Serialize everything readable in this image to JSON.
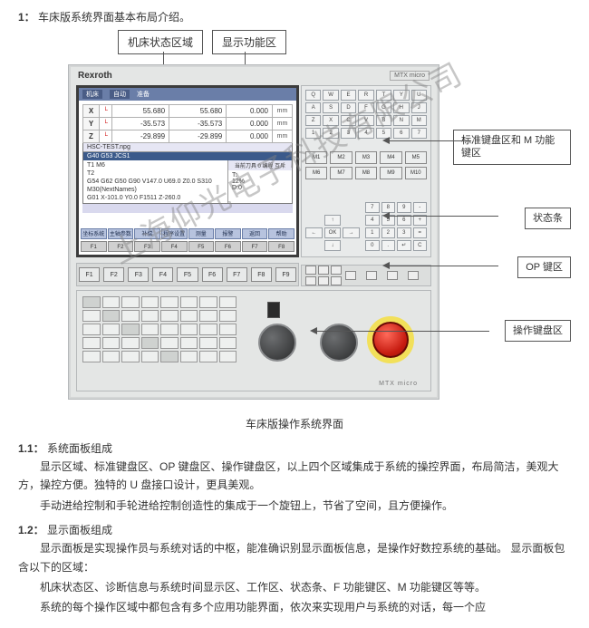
{
  "header": {
    "num": "1：",
    "title": "车床版系统界面基本布局介绍。"
  },
  "top_callouts": {
    "machine_status": "机床状态区域",
    "display_func": "显示功能区"
  },
  "side_callouts": {
    "keypad": "标准键盘区和 M 功能键区",
    "statusbar": "状态条",
    "opkeys": "OP 键区",
    "opkeyboard": "操作键盘区"
  },
  "panel": {
    "brand": "Rexroth",
    "label": "MTX micro"
  },
  "screen": {
    "status": {
      "seg1": "机床",
      "seg2": "自动",
      "seg3": "准备"
    },
    "axes": [
      {
        "axis": "X",
        "mark": "└",
        "v1": "55.680",
        "v2": "55.680",
        "v3": "0.000",
        "u": "mm"
      },
      {
        "axis": "Y",
        "mark": "└",
        "v1": "-35.573",
        "v2": "-35.573",
        "v3": "0.000",
        "u": "mm"
      },
      {
        "axis": "Z",
        "mark": "└",
        "v1": "-29.899",
        "v2": "-29.899",
        "v3": "0.000",
        "u": "mm"
      }
    ],
    "prog": {
      "header": "HSC-TEST.npg",
      "green": "G40 G53 JCS1",
      "lines": [
        "T1 M6",
        "T2",
        "G54 G62 G50 G90 V147.0 U69.0 Z0.0 S310",
        "M30(NextNames)",
        "G01 X-101.0 Y0.0 F1511 Z-260.0"
      ],
      "rhead": "当前刀具 0   编程   互斥",
      "rlines": [
        "T:",
        "12%",
        "D:0",
        "S:",
        "F:",
        "1 0"
      ]
    },
    "softkeys_top": [
      "坐标系统",
      "主轴参数",
      "补偿",
      "程序设置",
      "测量",
      "报警",
      "返回",
      "帮助"
    ],
    "softkeys_bot": [
      "F1",
      "F2",
      "F3",
      "F4",
      "F5",
      "F6",
      "F7",
      "F8"
    ]
  },
  "keypad": {
    "rows": [
      "Q",
      "W",
      "E",
      "R",
      "T",
      "Y",
      "U",
      "A",
      "S",
      "D",
      "F",
      "G",
      "H",
      "J",
      "Z",
      "X",
      "C",
      "V",
      "B",
      "N",
      "M",
      "1",
      "2",
      "3",
      "4",
      "5",
      "6",
      "7"
    ],
    "mkeys": [
      "M1",
      "M2",
      "M3",
      "M4",
      "M5",
      "M6",
      "M7",
      "M8",
      "M9",
      "M10"
    ],
    "arrows": [
      "",
      "↑",
      "",
      "←",
      "OK",
      "→",
      "",
      "↓",
      ""
    ],
    "nums": [
      "7",
      "8",
      "9",
      "-",
      "4",
      "5",
      "6",
      "+",
      "1",
      "2",
      "3",
      "=",
      "0",
      ".",
      "↵",
      "C"
    ]
  },
  "fkeys": [
    "F1",
    "F2",
    "F3",
    "F4",
    "F5",
    "F6",
    "F7",
    "F8",
    "F9"
  ],
  "op_keys_count": 40,
  "op_label": "MTX micro",
  "watermark": "上海仰光电子科技有限公司",
  "caption": "车床版操作系统界面",
  "sections": {
    "s11": {
      "num": "1.1：",
      "title": "系统面板组成"
    },
    "s11_p1": "显示区域、标准键盘区、OP 键盘区、操作键盘区，以上四个区域集成于系统的操控界面，布局简洁，美观大方，操控方便。独特的 U 盘接口设计，更具美观。",
    "s11_p2": "手动进给控制和手轮进给控制创造性的集成于一个旋钮上，节省了空间，且方便操作。",
    "s12": {
      "num": "1.2：",
      "title": "显示面板组成"
    },
    "s12_p1": "显示面板是实现操作员与系统对话的中枢，能准确识别显示面板信息，是操作好数控系统的基础。 显示面板包含以下的区域：",
    "s12_p2": "机床状态区、诊断信息与系统时间显示区、工作区、状态条、F 功能键区、M 功能键区等等。",
    "s12_p3": "系统的每个操作区域中都包含有多个应用功能界面，依次来实现用户与系统的对话，每一个应"
  },
  "colors": {
    "panel_bg": "#e4e6e5",
    "screen_border": "#3c3c3c",
    "statusbar_bg": "#6a7ea8",
    "softkey_bg": "#b7c3de",
    "estop_red": "#c61b10",
    "estop_ring": "#f2e05a",
    "callout_border": "#555555"
  }
}
